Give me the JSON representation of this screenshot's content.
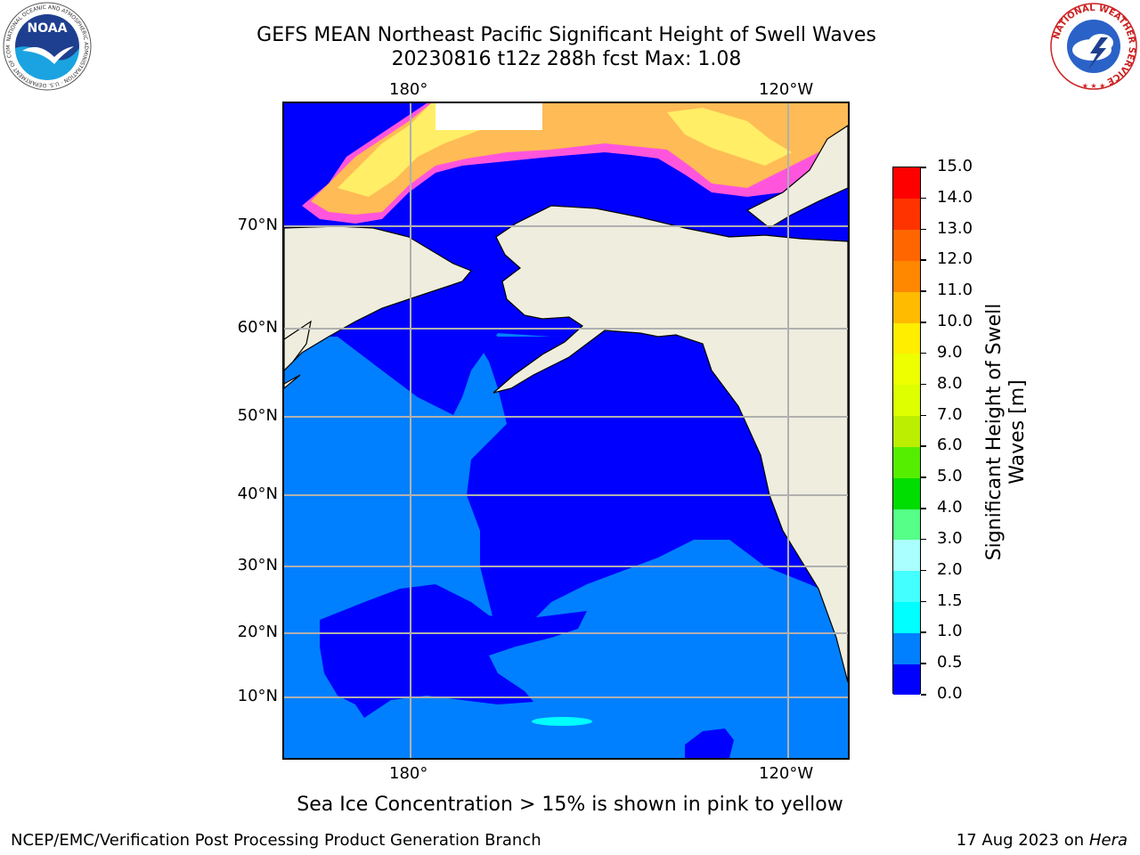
{
  "header": {
    "title_line1": "GEFS MEAN Northeast Pacific Significant Height of Swell Waves",
    "title_line2": "20230816 t12z 288h fcst   Max: 1.08"
  },
  "map": {
    "lon_labels_top": [
      "180°",
      "120°W"
    ],
    "lon_labels_bottom": [
      "180°",
      "120°W"
    ],
    "lat_labels": [
      "70°N",
      "60°N",
      "50°N",
      "40°N",
      "30°N",
      "20°N",
      "10°N"
    ],
    "colors": {
      "land": "#efedde",
      "wave_0_0_5": "#0000ff",
      "wave_0_5_1_0": "#0080ff",
      "wave_1_0_1_5": "#00ffff",
      "ice_pink": "#ff55dd",
      "ice_orange": "#ffbb55",
      "ice_yellow": "#ffee66",
      "grid": "#b0b0b0"
    }
  },
  "colorbar": {
    "label": "Significant Height of Swell Waves [m]",
    "label_line1": "Significant Height of Swell",
    "label_line2": "Waves [m]",
    "ticks": [
      "0.0",
      "0.5",
      "1.0",
      "1.5",
      "2.0",
      "3.0",
      "4.0",
      "5.0",
      "6.0",
      "7.0",
      "8.0",
      "9.0",
      "10.0",
      "11.0",
      "12.0",
      "13.0",
      "14.0",
      "15.0"
    ],
    "colors": [
      "#0000ff",
      "#0080ff",
      "#00ffff",
      "#44ffff",
      "#aaffff",
      "#55ff88",
      "#00dd00",
      "#55ee00",
      "#bbee00",
      "#ddff00",
      "#eeff00",
      "#ffee00",
      "#ffbb00",
      "#ff8800",
      "#ff6600",
      "#ff3300",
      "#ff0000"
    ]
  },
  "footer": {
    "note": "Sea Ice Concentration > 15% is shown in pink to yellow",
    "credit_left": "NCEP/EMC/Verification Post Processing Product Generation Branch",
    "date_text": "17 Aug 2023 on",
    "host": "Hera"
  },
  "logos": {
    "noaa_text": "NOAA",
    "noaa_ring": "NATIONAL OCEANIC AND ATMOSPHERIC ADMINISTRATION · U.S. DEPARTMENT OF COMMERCE",
    "nws_ring": "NATIONAL WEATHER SERVICE"
  }
}
